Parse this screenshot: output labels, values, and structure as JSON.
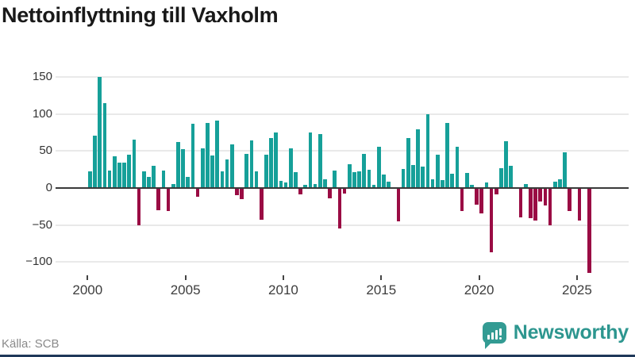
{
  "title": "Nettoinflyttning till Vaxholm",
  "source": "Källa: SCB",
  "logo": {
    "text": "Newsworthy",
    "icon": "newsworthy-speech-bubble-chart-icon"
  },
  "colors": {
    "positive": "#16A099",
    "negative": "#9A0C44",
    "grid": "#E9E9E9",
    "axis": "#3A3A3A",
    "logo": "#339B93",
    "logo_text": "#2D968F",
    "footer_bar": "#1F3859"
  },
  "chart_data": {
    "type": "bar",
    "title": "Nettoinflyttning till Vaxholm",
    "xlabel": "",
    "ylabel": "",
    "x_tick_labels": [
      "2000",
      "2005",
      "2010",
      "2015",
      "2020",
      "2025"
    ],
    "y_ticks": [
      150,
      100,
      50,
      0,
      -50,
      -100
    ],
    "y_tick_labels": [
      "150",
      "100",
      "50",
      "0",
      "−50",
      "−100"
    ],
    "ylim": [
      -125,
      165
    ],
    "grid": true,
    "legend": false,
    "period": "quarterly",
    "series": [
      {
        "year": 2000,
        "values": [
          23,
          71,
          150,
          115
        ]
      },
      {
        "year": 2001,
        "values": [
          24,
          43,
          34,
          34
        ]
      },
      {
        "year": 2002,
        "values": [
          45,
          65,
          -49,
          23
        ]
      },
      {
        "year": 2003,
        "values": [
          15,
          30,
          -28,
          24
        ]
      },
      {
        "year": 2004,
        "values": [
          -30,
          5,
          62,
          52
        ]
      },
      {
        "year": 2005,
        "values": [
          15,
          87,
          -10,
          54
        ]
      },
      {
        "year": 2006,
        "values": [
          88,
          44,
          91,
          23
        ]
      },
      {
        "year": 2007,
        "values": [
          39,
          59,
          -8,
          -13
        ]
      },
      {
        "year": 2008,
        "values": [
          46,
          64,
          22,
          -41
        ]
      },
      {
        "year": 2009,
        "values": [
          45,
          67,
          75,
          10
        ]
      },
      {
        "year": 2010,
        "values": [
          8,
          54,
          21,
          -7
        ]
      },
      {
        "year": 2011,
        "values": [
          4,
          75,
          5,
          73
        ]
      },
      {
        "year": 2012,
        "values": [
          12,
          -12,
          24,
          -53
        ]
      },
      {
        "year": 2013,
        "values": [
          -6,
          32,
          21,
          23
        ]
      },
      {
        "year": 2014,
        "values": [
          46,
          25,
          4,
          56
        ]
      },
      {
        "year": 2015,
        "values": [
          18,
          9,
          1,
          -43
        ]
      },
      {
        "year": 2016,
        "values": [
          26,
          67,
          31,
          79
        ]
      },
      {
        "year": 2017,
        "values": [
          29,
          100,
          12,
          45
        ]
      },
      {
        "year": 2018,
        "values": [
          11,
          88,
          19,
          56
        ]
      },
      {
        "year": 2019,
        "values": [
          -30,
          20,
          4,
          -21
        ]
      },
      {
        "year": 2020,
        "values": [
          -33,
          7,
          -85,
          -7
        ]
      },
      {
        "year": 2021,
        "values": [
          27,
          63,
          30,
          0
        ]
      },
      {
        "year": 2022,
        "values": [
          -38,
          5,
          -39,
          -42
        ]
      },
      {
        "year": 2023,
        "values": [
          -17,
          -22,
          -49,
          9
        ]
      },
      {
        "year": 2024,
        "values": [
          12,
          48,
          -30,
          0
        ]
      },
      {
        "year": 2025,
        "values": [
          -42,
          0,
          -113
        ]
      }
    ]
  }
}
